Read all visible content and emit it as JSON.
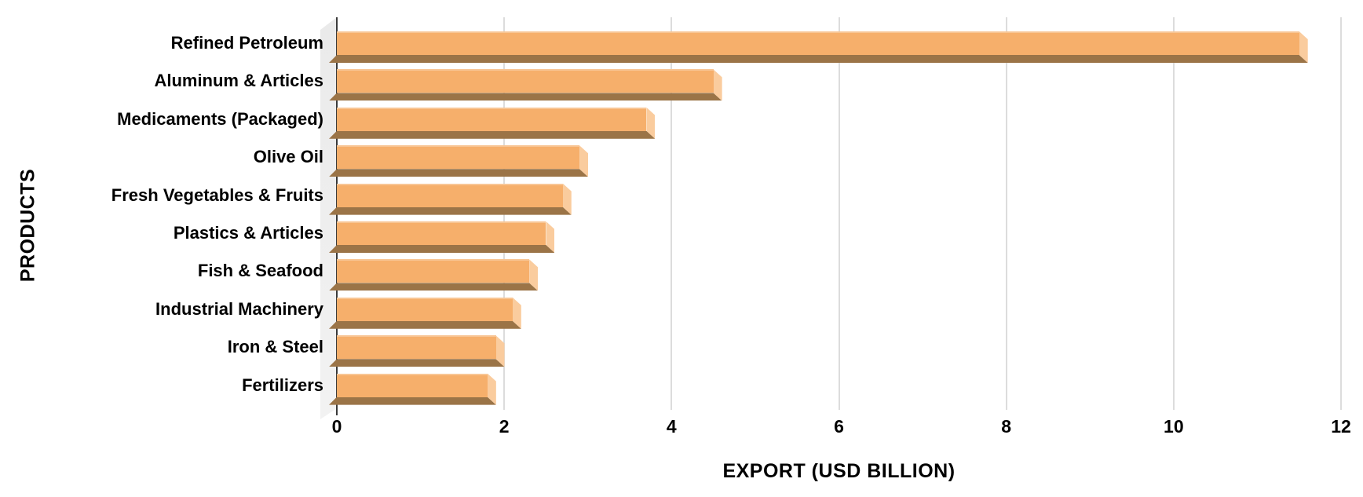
{
  "chart_data": {
    "type": "bar",
    "orientation": "horizontal",
    "title": "",
    "xlabel": "EXPORT (USD BILLION)",
    "ylabel": "PRODUCTS",
    "categories": [
      "Refined Petroleum",
      "Aluminum & Articles",
      "Medicaments (Packaged)",
      "Olive Oil",
      "Fresh Vegetables & Fruits",
      "Plastics & Articles",
      "Fish & Seafood",
      "Industrial Machinery",
      "Iron & Steel",
      "Fertilizers"
    ],
    "values": [
      11.5,
      4.5,
      3.7,
      2.9,
      2.7,
      2.5,
      2.3,
      2.1,
      1.9,
      1.8
    ],
    "xlim": [
      0,
      12
    ],
    "x_ticks": [
      0,
      2,
      4,
      6,
      8,
      10,
      12
    ],
    "grid": true,
    "legend": false,
    "style_3d": true,
    "colors": {
      "bar_face": "#F6AF6B",
      "bar_side_bevel": "#FACC9E",
      "bar_bottom_shadow": "#9B7447",
      "wall_gray": "#EAEAEA",
      "gridline": "#DCDCDC",
      "axis_line": "#3A3A3A",
      "text": "#000000"
    }
  }
}
